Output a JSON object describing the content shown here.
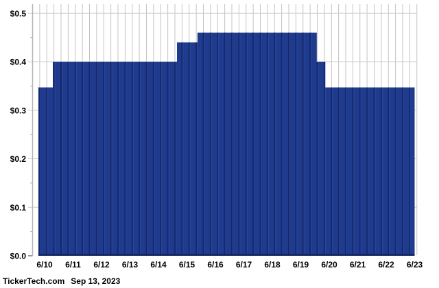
{
  "page": {
    "background_color": "#ffffff"
  },
  "footer": {
    "brand": "TickerTech.com",
    "date": "Sep 13, 2023"
  },
  "chart_data": {
    "type": "area",
    "subtype": "step",
    "title": "",
    "xlabel": "",
    "ylabel": "",
    "x_tick_labels": [
      "6/10",
      "6/11",
      "6/12",
      "6/13",
      "6/14",
      "6/15",
      "6/16",
      "6/17",
      "6/18",
      "6/19",
      "6/20",
      "6/21",
      "6/22",
      "6/23"
    ],
    "y_tick_labels": [
      "$0.0",
      "$0.1",
      "$0.2",
      "$0.3",
      "$0.4",
      "$0.5"
    ],
    "y_tick_values": [
      0.0,
      0.1,
      0.2,
      0.3,
      0.4,
      0.5
    ],
    "ylim": [
      0.0,
      0.52
    ],
    "y_major_step": 0.1,
    "y_minor_step": 0.05,
    "grid": {
      "vertical_divisions_per_label": 4,
      "vertical_color": "#c3c3c3",
      "horizontal_color": "#cccccc",
      "minor_tick_color": "#b0b0b0",
      "axis_color": "#b5b5b5"
    },
    "colors": {
      "area_fill": "#1f3b8e",
      "area_stripe_dark": "#16276b",
      "area_stripe_light": "#2d4a9e",
      "area_bottom_edge": "#0f1f58",
      "label_text": "#000000"
    },
    "series": [
      {
        "name": "dividend-per-share",
        "unit": "$",
        "legend": "",
        "segments": [
          {
            "x_start": -0.22,
            "x_end": 0.29,
            "value": 0.347
          },
          {
            "x_start": 0.29,
            "x_end": 4.65,
            "value": 0.4
          },
          {
            "x_start": 4.65,
            "x_end": 5.37,
            "value": 0.44
          },
          {
            "x_start": 5.37,
            "x_end": 9.56,
            "value": 0.46
          },
          {
            "x_start": 9.56,
            "x_end": 9.86,
            "value": 0.4
          },
          {
            "x_start": 9.86,
            "x_end": 13.0,
            "value": 0.347
          }
        ]
      }
    ]
  }
}
